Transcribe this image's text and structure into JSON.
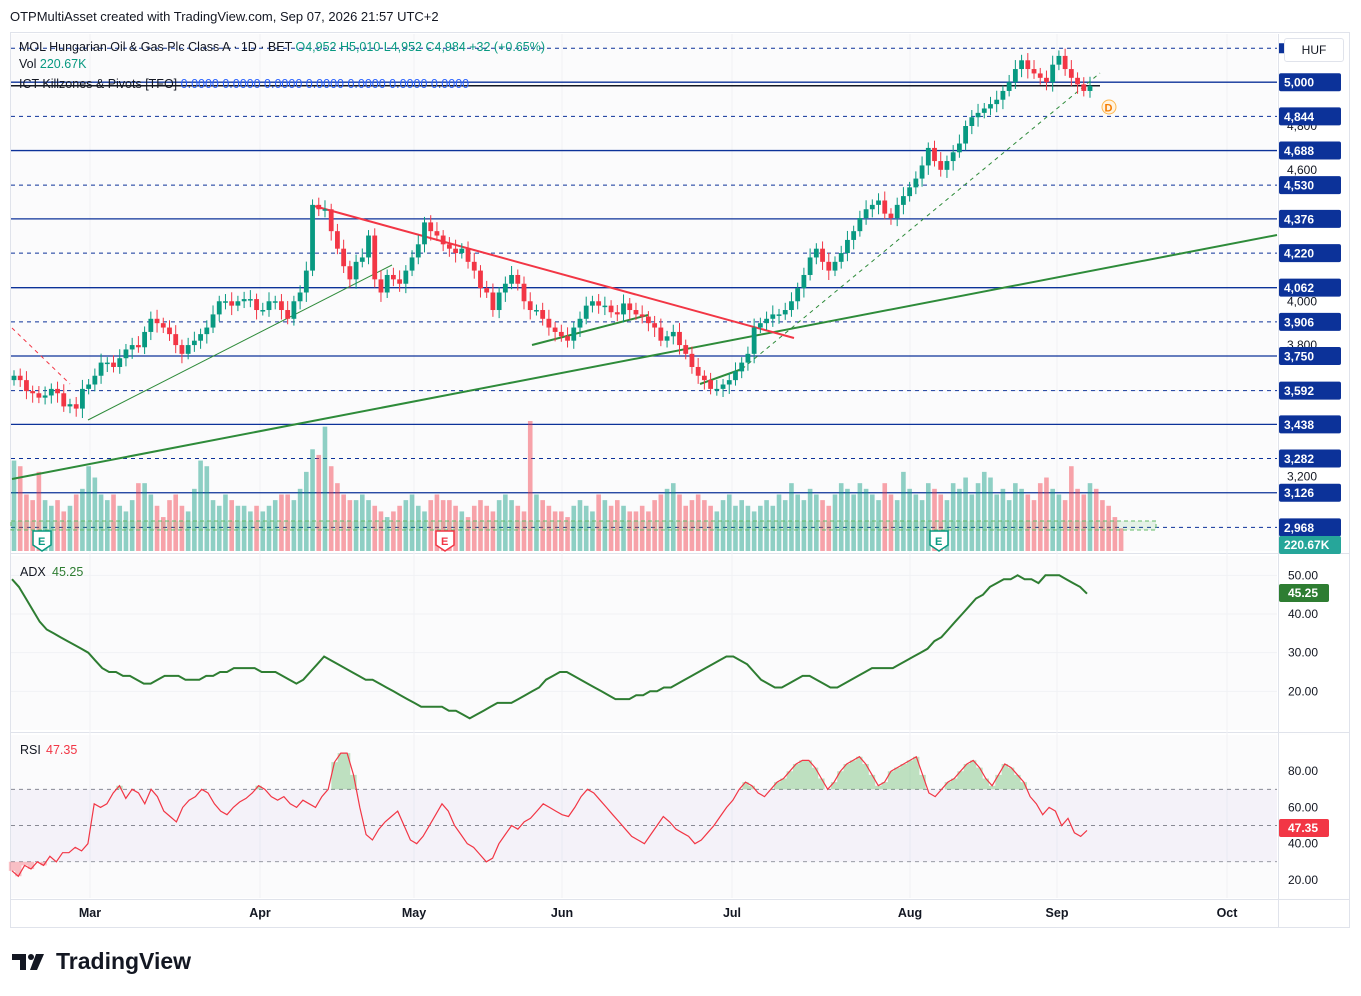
{
  "header": {
    "published": "OTPMultiAsset created with TradingView.com, Sep 07, 2026 21:57 UTC+2"
  },
  "legend": {
    "symbol": "MOL Hungarian Oil & Gas Plc Class A · 1D · BET",
    "ohlc": "O4,952  H5,010  L4,952  C4,984  +32 (+0.65%)",
    "vol_label": "Vol",
    "vol_value": "220.67K",
    "indicator": "ICT Killzones & Pivots [TFO]",
    "indicator_values": "0.0000  0.0000  0.0000  0.0000  0.0000  0.0000  0.0000"
  },
  "currency": "HUF",
  "brand": "TradingView",
  "colors": {
    "up": "#089981",
    "down": "#f23645",
    "level": "#0c3299",
    "trend_green": "#2e8b3a",
    "trend_red": "#f23645",
    "adx": "#2e7d32",
    "rsi": "#f23645"
  },
  "chart_data": [
    {
      "type": "candlestick",
      "title": "MOL Hungarian Oil & Gas Plc Class A · 1D · BET",
      "x_axis": [
        "Mar",
        "Apr",
        "May",
        "Jun",
        "Jul",
        "Aug",
        "Sep",
        "Oct"
      ],
      "price_axis_ticks": [
        "3,200",
        "3,800",
        "4,000",
        "4,600",
        "4,800"
      ],
      "ylim": [
        2860,
        5220
      ],
      "last_close": 4984,
      "levels": [
        {
          "label": "5,000",
          "style": "solid"
        },
        {
          "label": "4,844",
          "style": "dashed"
        },
        {
          "label": "4,688",
          "style": "solid"
        },
        {
          "label": "4,530",
          "style": "dashed"
        },
        {
          "label": "4,376",
          "style": "solid"
        },
        {
          "label": "4,220",
          "style": "dashed"
        },
        {
          "label": "4,062",
          "style": "solid"
        },
        {
          "label": "3,906",
          "style": "dashed"
        },
        {
          "label": "3,750",
          "style": "solid"
        },
        {
          "label": "3,592",
          "style": "dashed"
        },
        {
          "label": "3,438",
          "style": "solid"
        },
        {
          "label": "3,282",
          "style": "dashed"
        },
        {
          "label": "3,126",
          "style": "solid"
        },
        {
          "label": "2,968",
          "style": "dashed"
        }
      ],
      "level_values": [
        5000,
        4844,
        4688,
        4530,
        4376,
        4220,
        4062,
        3906,
        3750,
        3592,
        3438,
        3282,
        3126,
        2968
      ],
      "top_level_value": 5155,
      "close_series": [
        3660,
        3640,
        3590,
        3580,
        3560,
        3570,
        3600,
        3580,
        3520,
        3530,
        3510,
        3600,
        3620,
        3660,
        3720,
        3720,
        3700,
        3740,
        3780,
        3800,
        3790,
        3860,
        3920,
        3900,
        3880,
        3850,
        3800,
        3760,
        3800,
        3820,
        3850,
        3880,
        3940,
        4000,
        4000,
        3980,
        4000,
        4010,
        4010,
        3960,
        3960,
        4000,
        4000,
        3960,
        3920,
        4000,
        4040,
        4140,
        4440,
        4420,
        4420,
        4320,
        4240,
        4160,
        4100,
        4180,
        4200,
        4300,
        4100,
        4040,
        4120,
        4100,
        4080,
        4140,
        4200,
        4260,
        4360,
        4320,
        4300,
        4260,
        4240,
        4220,
        4240,
        4180,
        4140,
        4060,
        4040,
        3960,
        4040,
        4080,
        4120,
        4080,
        4000,
        3960,
        3960,
        3920,
        3880,
        3860,
        3840,
        3820,
        3880,
        3920,
        3980,
        4000,
        3980,
        3980,
        3950,
        3940,
        3990,
        3960,
        3940,
        3930,
        3900,
        3880,
        3820,
        3840,
        3860,
        3800,
        3760,
        3700,
        3660,
        3640,
        3600,
        3600,
        3620,
        3640,
        3680,
        3720,
        3760,
        3880,
        3900,
        3920,
        3940,
        3940,
        3960,
        4000,
        4060,
        4120,
        4200,
        4240,
        4180,
        4140,
        4180,
        4220,
        4280,
        4320,
        4380,
        4420,
        4440,
        4460,
        4400,
        4380,
        4440,
        4480,
        4520,
        4560,
        4620,
        4700,
        4640,
        4600,
        4640,
        4680,
        4720,
        4800,
        4840,
        4860,
        4880,
        4900,
        4920,
        4960,
        5000,
        5060,
        5100,
        5060,
        5040,
        5020,
        5000,
        5080,
        5120,
        5060,
        5020,
        4990,
        4960,
        4984
      ],
      "volume_series": [
        160,
        150,
        100,
        90,
        140,
        90,
        80,
        90,
        70,
        80,
        100,
        110,
        150,
        130,
        100,
        90,
        100,
        80,
        70,
        90,
        120,
        120,
        100,
        80,
        60,
        90,
        100,
        80,
        70,
        110,
        160,
        150,
        90,
        80,
        100,
        90,
        80,
        80,
        70,
        80,
        70,
        80,
        90,
        100,
        100,
        90,
        110,
        140,
        180,
        170,
        220,
        150,
        120,
        100,
        90,
        90,
        100,
        90,
        80,
        70,
        60,
        70,
        80,
        90,
        100,
        80,
        70,
        90,
        100,
        90,
        90,
        80,
        70,
        60,
        80,
        90,
        80,
        70,
        90,
        100,
        90,
        80,
        70,
        230,
        100,
        90,
        80,
        70,
        70,
        60,
        80,
        90,
        80,
        70,
        100,
        90,
        80,
        90,
        80,
        70,
        70,
        80,
        70,
        90,
        100,
        110,
        120,
        100,
        80,
        90,
        100,
        90,
        80,
        70,
        90,
        100,
        80,
        90,
        80,
        70,
        80,
        90,
        80,
        100,
        90,
        120,
        100,
        90,
        110,
        100,
        90,
        80,
        100,
        120,
        110,
        100,
        120,
        110,
        100,
        90,
        120,
        100,
        90,
        140,
        110,
        100,
        90,
        120,
        110,
        100,
        90,
        120,
        110,
        130,
        100,
        120,
        140,
        130,
        100,
        110,
        90,
        120,
        110,
        100,
        90,
        120,
        130,
        110,
        100,
        90,
        150,
        110,
        100,
        120,
        110,
        90,
        80,
        60,
        40
      ],
      "volume_last_label": "220.67K",
      "earnings_markers": [
        "E",
        "E",
        "E"
      ],
      "trendlines": [
        {
          "name": "long-term-support",
          "color": "green"
        },
        {
          "name": "descending-resistance",
          "color": "red"
        },
        {
          "name": "rising-support-1",
          "color": "green"
        },
        {
          "name": "rising-support-2",
          "color": "green"
        }
      ],
      "session_marker": "D"
    },
    {
      "type": "line",
      "title": "ADX",
      "value_label": "45.25",
      "ylim": [
        10,
        55
      ],
      "ticks": [
        "50.00",
        "40.00",
        "30.00",
        "20.00"
      ],
      "values": [
        49,
        47,
        44,
        41,
        38,
        36,
        35,
        34,
        33,
        32,
        31,
        30,
        28,
        26,
        25,
        25,
        24,
        24,
        23,
        22,
        22,
        23,
        24,
        24,
        24,
        23,
        23,
        23,
        24,
        24,
        25,
        25,
        26,
        26,
        26,
        26,
        25,
        25,
        25,
        24,
        23,
        22,
        23,
        25,
        27,
        29,
        28,
        27,
        26,
        25,
        24,
        23,
        23,
        22,
        21,
        20,
        19,
        18,
        17,
        16,
        16,
        16,
        16,
        15,
        15,
        14,
        13,
        14,
        15,
        16,
        17,
        17,
        17,
        18,
        19,
        20,
        21,
        23,
        24,
        25,
        25,
        24,
        23,
        22,
        21,
        20,
        19,
        18,
        18,
        18,
        19,
        19,
        20,
        20,
        21,
        21,
        22,
        23,
        24,
        25,
        26,
        27,
        28,
        29,
        29,
        28,
        27,
        25,
        23,
        22,
        21,
        21,
        22,
        23,
        24,
        24,
        23,
        22,
        21,
        21,
        22,
        23,
        24,
        25,
        26,
        26,
        26,
        26,
        27,
        28,
        29,
        30,
        31,
        33,
        34,
        36,
        38,
        40,
        42,
        44,
        45,
        47,
        48,
        49,
        49,
        50,
        49,
        49,
        48,
        50,
        50,
        50,
        49,
        48,
        47,
        45.25
      ]
    },
    {
      "type": "line",
      "title": "RSI",
      "value_label": "47.35",
      "ylim": [
        10,
        100
      ],
      "ticks": [
        "80.00",
        "60.00",
        "40.00",
        "20.00"
      ],
      "bands": [
        70,
        50,
        30
      ],
      "values": [
        25,
        22,
        28,
        26,
        30,
        28,
        33,
        30,
        35,
        35,
        38,
        36,
        40,
        62,
        60,
        62,
        68,
        72,
        65,
        70,
        68,
        62,
        70,
        66,
        58,
        55,
        52,
        60,
        64,
        66,
        70,
        68,
        62,
        58,
        56,
        60,
        63,
        65,
        68,
        72,
        70,
        66,
        64,
        66,
        62,
        60,
        64,
        62,
        60,
        66,
        70,
        85,
        90,
        90,
        78,
        60,
        45,
        42,
        48,
        52,
        55,
        58,
        50,
        42,
        40,
        44,
        50,
        56,
        62,
        58,
        50,
        45,
        40,
        38,
        34,
        30,
        32,
        40,
        45,
        50,
        48,
        52,
        54,
        58,
        62,
        60,
        58,
        56,
        55,
        60,
        66,
        70,
        68,
        64,
        60,
        56,
        52,
        48,
        44,
        42,
        40,
        45,
        50,
        55,
        52,
        48,
        46,
        44,
        40,
        42,
        46,
        50,
        55,
        60,
        64,
        70,
        74,
        72,
        68,
        66,
        70,
        74,
        76,
        80,
        84,
        86,
        86,
        82,
        76,
        70,
        74,
        80,
        84,
        86,
        88,
        84,
        78,
        72,
        74,
        80,
        82,
        84,
        86,
        88,
        78,
        68,
        66,
        70,
        74,
        76,
        80,
        84,
        86,
        82,
        76,
        72,
        78,
        84,
        82,
        78,
        74,
        66,
        62,
        56,
        60,
        58,
        50,
        54,
        46,
        44,
        47.35
      ]
    }
  ]
}
